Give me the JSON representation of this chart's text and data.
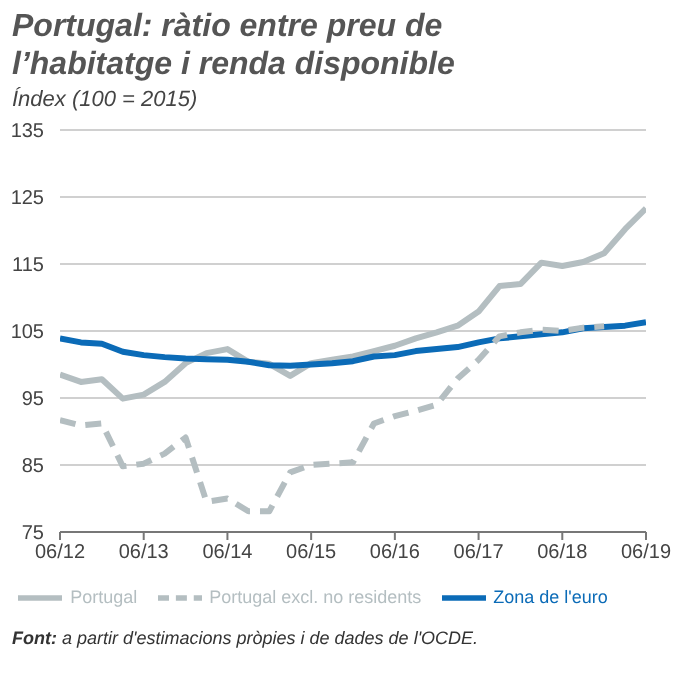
{
  "chart_data": {
    "type": "line",
    "title": "Portugal: ràtio entre preu de l’habitatge i renda disponible",
    "ylabel": "Índex (100 = 2015)",
    "x": [
      "2012-06",
      "2012-09",
      "2012-12",
      "2013-03",
      "2013-06",
      "2013-09",
      "2013-12",
      "2014-03",
      "2014-06",
      "2014-09",
      "2014-12",
      "2015-03",
      "2015-06",
      "2015-09",
      "2015-12",
      "2016-03",
      "2016-06",
      "2016-09",
      "2016-12",
      "2017-03",
      "2017-06",
      "2017-09",
      "2017-12",
      "2018-03",
      "2018-06",
      "2018-09",
      "2018-12",
      "2019-03",
      "2019-06"
    ],
    "series": [
      {
        "name": "Portugal",
        "color": "#b4bec1",
        "line_style": "solid",
        "values": [
          98.5,
          97.4,
          97.8,
          94.9,
          95.5,
          97.4,
          100.2,
          101.7,
          102.3,
          100.4,
          100.1,
          98.3,
          100.2,
          100.7,
          101.2,
          102.0,
          102.8,
          103.9,
          104.8,
          105.8,
          107.9,
          111.7,
          112.0,
          115.2,
          114.7,
          115.3,
          116.6,
          120.2,
          123.3
        ]
      },
      {
        "name": "Zona de l'euro",
        "color": "#0b6bb7",
        "line_style": "solid",
        "values": [
          103.9,
          103.3,
          103.1,
          101.9,
          101.4,
          101.1,
          100.9,
          100.8,
          100.7,
          100.4,
          99.9,
          99.8,
          100.0,
          100.2,
          100.5,
          101.2,
          101.4,
          102.0,
          102.3,
          102.6,
          103.3,
          103.9,
          104.2,
          104.5,
          104.8,
          105.4,
          105.6,
          105.8,
          106.3
        ]
      },
      {
        "name": "Portugal excl. no residents",
        "color": "#b4bec1",
        "line_style": "dashed",
        "values": [
          91.7,
          90.9,
          91.2,
          84.8,
          85.2,
          86.7,
          89.1,
          79.5,
          80.0,
          78.1,
          78.1,
          83.9,
          85.0,
          85.2,
          85.4,
          91.2,
          92.3,
          93.1,
          94.0,
          97.9,
          100.7,
          104.2,
          104.8,
          105.2,
          105.0,
          105.5,
          105.7,
          null,
          null
        ]
      }
    ],
    "xlim": [
      "2012-06",
      "2019-06"
    ],
    "xticks": [
      {
        "value": "2012-06",
        "label": "06/12"
      },
      {
        "value": "2013-06",
        "label": "06/13"
      },
      {
        "value": "2014-06",
        "label": "06/14"
      },
      {
        "value": "2015-06",
        "label": "06/15"
      },
      {
        "value": "2016-06",
        "label": "06/16"
      },
      {
        "value": "2017-06",
        "label": "06/17"
      },
      {
        "value": "2018-06",
        "label": "06/18"
      },
      {
        "value": "2019-06",
        "label": "06/19"
      }
    ],
    "ylim": [
      75,
      135
    ],
    "yticks": [
      75,
      85,
      95,
      105,
      115,
      125,
      135
    ],
    "grid": "y",
    "legend": "bottom",
    "marker": "none",
    "annotations": [
      "Font: a partir d'estimacions pròpies i de dades de l'OCDE."
    ]
  }
}
